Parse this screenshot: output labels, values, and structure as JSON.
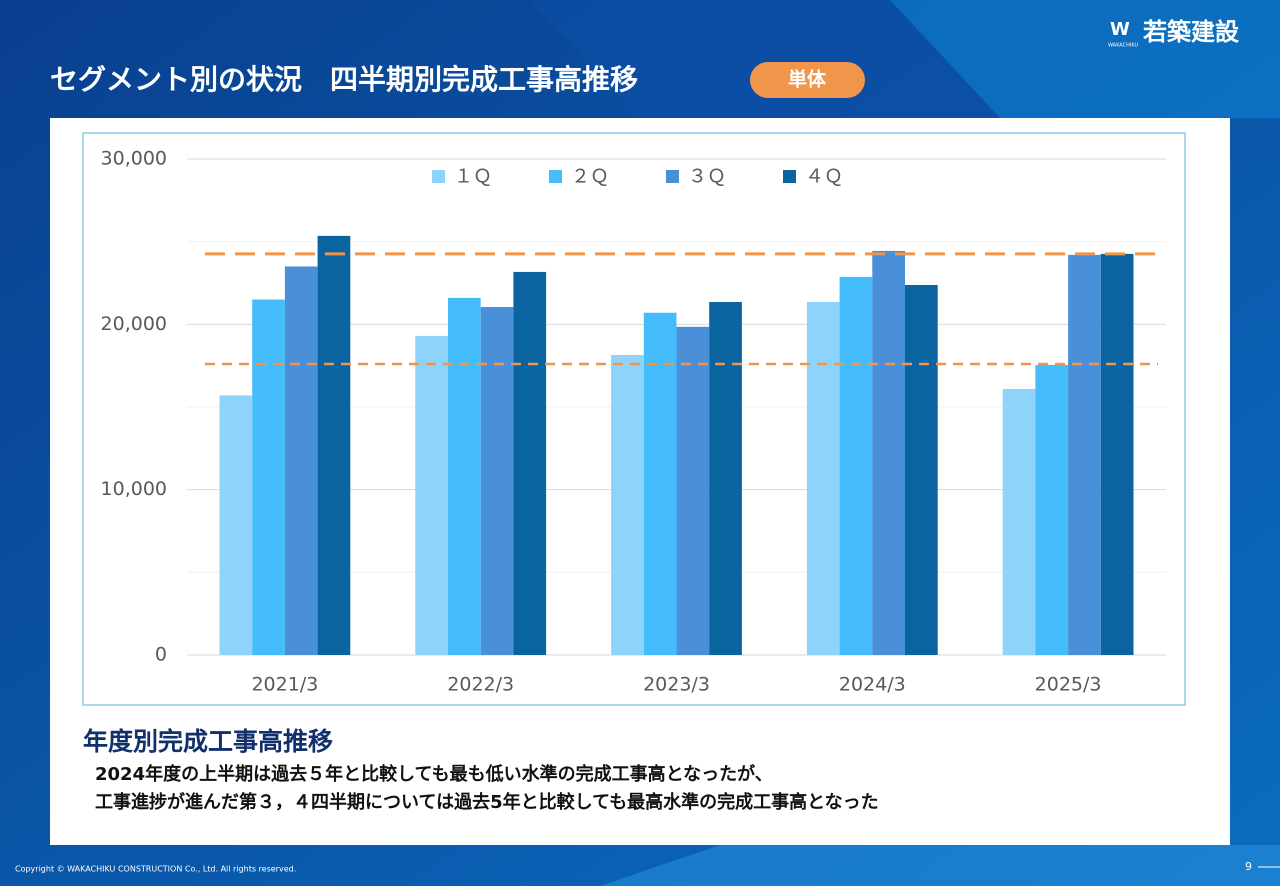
{
  "header": {
    "title": "セグメント別の状況　四半期別完成工事高推移",
    "badge": "単体",
    "logo": "若築建設",
    "logo_sub": "WAKACHIKU"
  },
  "chart_data": {
    "type": "bar",
    "categories": [
      "2021/3",
      "2022/3",
      "2023/3",
      "2024/3",
      "2025/3"
    ],
    "series": [
      {
        "name": "１Ｑ",
        "color": "#8dd3fa",
        "values": [
          15700,
          19300,
          18150,
          21350,
          16090
        ]
      },
      {
        "name": "２Ｑ",
        "color": "#45bdfc",
        "values": [
          21500,
          21600,
          20700,
          22870,
          17540
        ]
      },
      {
        "name": "３Ｑ",
        "color": "#4a90d9",
        "values": [
          23500,
          21050,
          19850,
          24440,
          24200
        ]
      },
      {
        "name": "４Ｑ",
        "color": "#0a64a0",
        "values": [
          25350,
          23170,
          21350,
          22380,
          24260
        ]
      }
    ],
    "ylim": [
      0,
      30000
    ],
    "yticks": [
      0,
      {
        "value": 10000,
        "label": "10,000"
      },
      {
        "value": 20000,
        "label": "20,000"
      },
      {
        "value": 30000,
        "label": "30,000"
      }
    ],
    "minor_yticks": [
      5000,
      15000,
      25000
    ],
    "grid": true,
    "legend": "top",
    "reference_lines": [
      24260,
      17600
    ],
    "reference_color": "#f0954a"
  },
  "summary": {
    "heading": "年度別完成工事高推移",
    "lines": [
      "2024年度の上半期は過去５年と比較しても最も低い水準の完成工事高となったが、",
      "工事進捗が進んだ第３，４四半期については過去5年と比較しても最高水準の完成工事高となった"
    ]
  },
  "footer": {
    "copyright": "Copyright © WAKACHIKU CONSTRUCTION Co., Ltd. All rights reserved.",
    "page": "9"
  }
}
